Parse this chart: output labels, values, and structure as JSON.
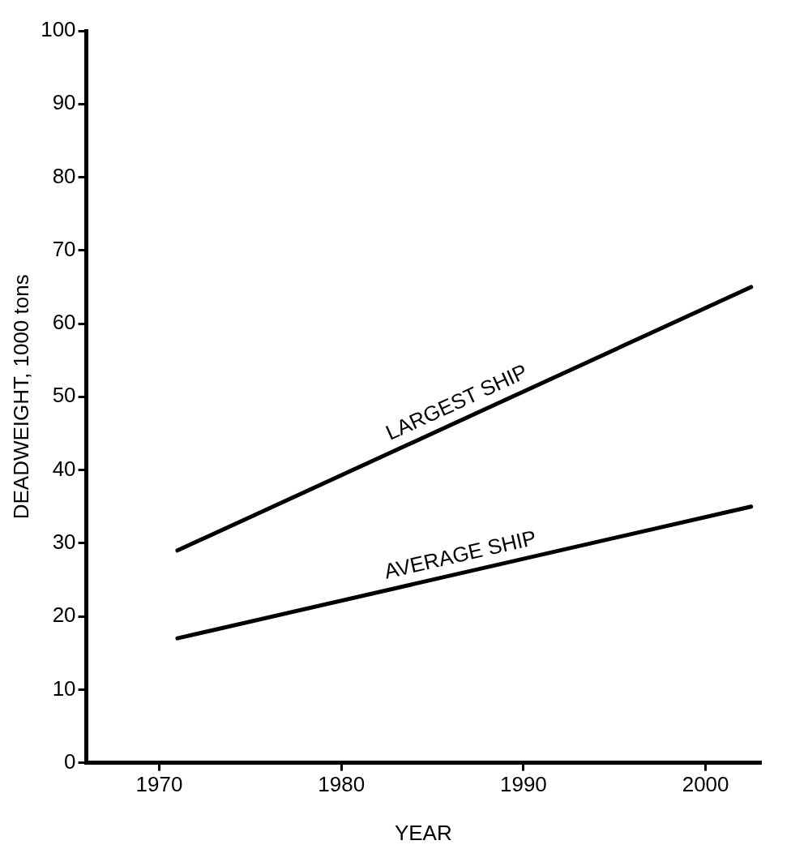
{
  "chart_data": {
    "type": "line",
    "xlabel": "YEAR",
    "ylabel": "DEADWEIGHT, 1000 tons",
    "series": [
      {
        "name": "LARGEST SHIP",
        "color": "#000000",
        "values": [
          29,
          65
        ]
      },
      {
        "name": "AVERAGE SHIP",
        "color": "#000000",
        "values": [
          17,
          35
        ]
      }
    ],
    "x": [
      1971,
      2002.5
    ],
    "xlim": [
      1966,
      2003
    ],
    "xticks": [
      1970,
      1980,
      1990,
      2000
    ],
    "ylim": [
      0,
      100
    ],
    "yticks": [
      0,
      10,
      20,
      30,
      40,
      50,
      60,
      70,
      80,
      90,
      100
    ],
    "grid": false,
    "legend": false,
    "marker": "none",
    "line_style": "solid"
  }
}
